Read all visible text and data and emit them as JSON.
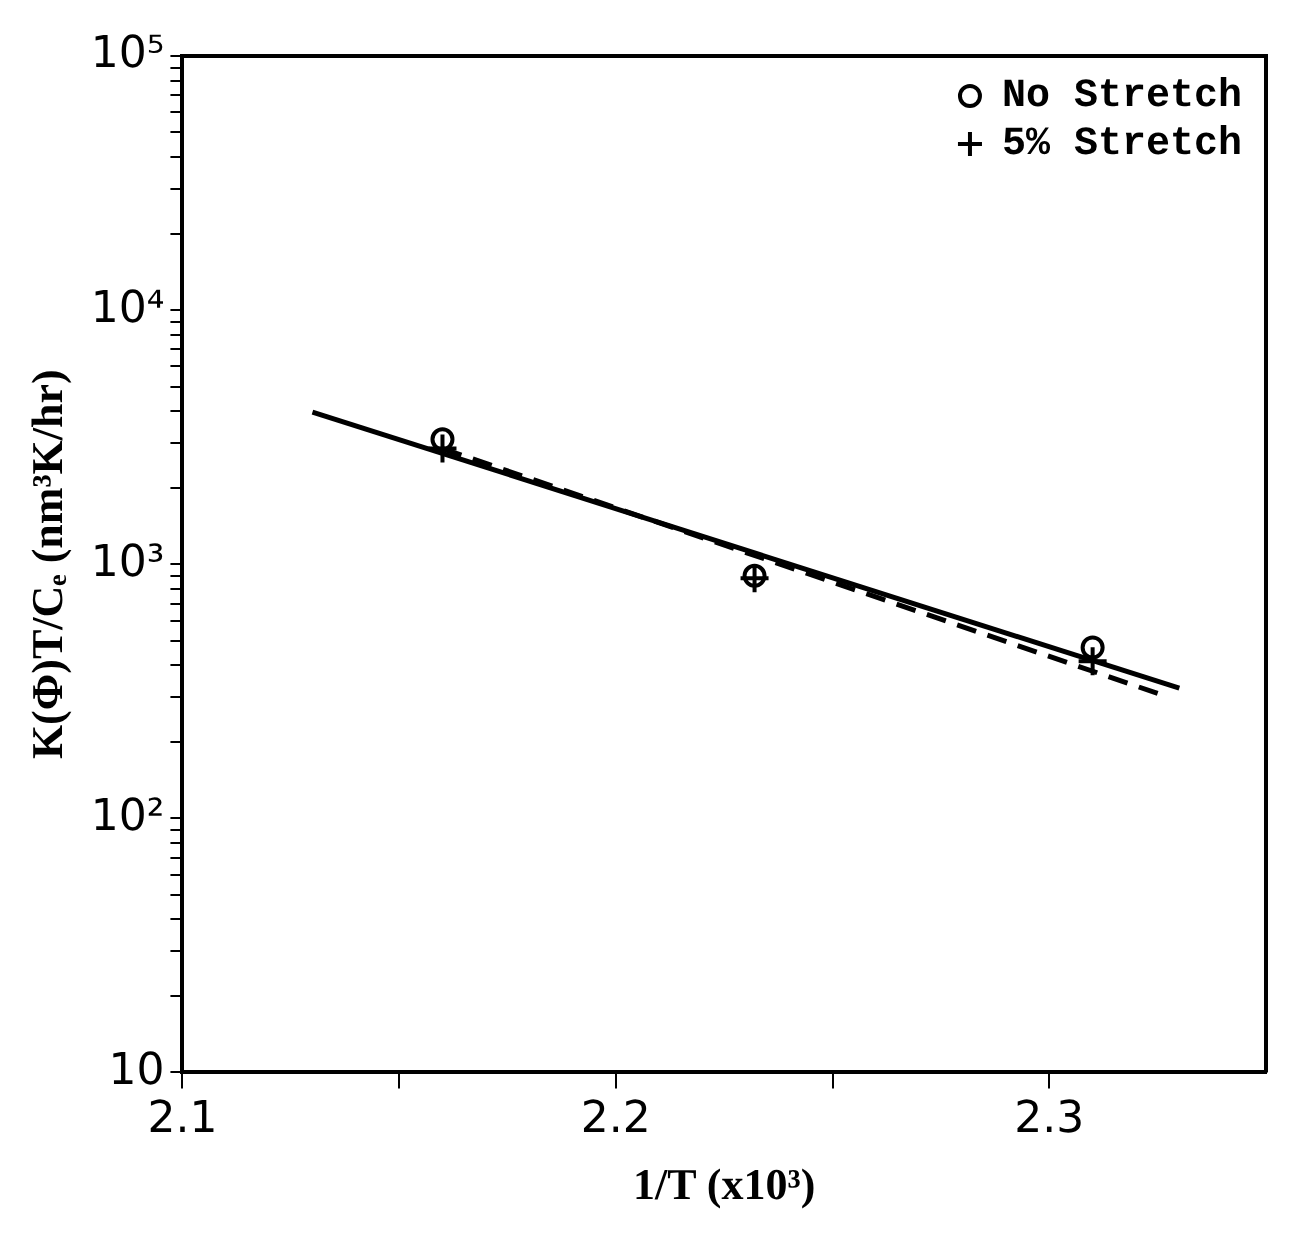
{
  "chart_data": {
    "type": "scatter",
    "xlabel": "1/T (x10³)",
    "ylabel": "K(Φ)T/Cₑ (nm³K/hr)",
    "log": "y",
    "grid": false,
    "legend": "top right",
    "xlim": [
      2.1,
      2.35
    ],
    "xticks": [
      2.1,
      {
        "value": 2.15,
        "label": null
      },
      2.2,
      {
        "value": 2.25,
        "label": null
      },
      2.3
    ],
    "ylim": [
      10,
      100000
    ],
    "yticks": [
      {
        "value": 10,
        "label": "10"
      },
      {
        "value": 20,
        "label": null
      },
      {
        "value": 30,
        "label": null
      },
      {
        "value": 40,
        "label": null
      },
      {
        "value": 50,
        "label": null
      },
      {
        "value": 60,
        "label": null
      },
      {
        "value": 70,
        "label": null
      },
      {
        "value": 80,
        "label": null
      },
      {
        "value": 90,
        "label": null
      },
      {
        "value": 100,
        "label": "10²"
      },
      {
        "value": 200,
        "label": null
      },
      {
        "value": 300,
        "label": null
      },
      {
        "value": 400,
        "label": null
      },
      {
        "value": 500,
        "label": null
      },
      {
        "value": 600,
        "label": null
      },
      {
        "value": 700,
        "label": null
      },
      {
        "value": 800,
        "label": null
      },
      {
        "value": 900,
        "label": null
      },
      {
        "value": 1000,
        "label": "10³"
      },
      {
        "value": 2000,
        "label": null
      },
      {
        "value": 3000,
        "label": null
      },
      {
        "value": 4000,
        "label": null
      },
      {
        "value": 5000,
        "label": null
      },
      {
        "value": 6000,
        "label": null
      },
      {
        "value": 7000,
        "label": null
      },
      {
        "value": 8000,
        "label": null
      },
      {
        "value": 9000,
        "label": null
      },
      {
        "value": 10000,
        "label": "10⁴"
      },
      {
        "value": 20000,
        "label": null
      },
      {
        "value": 30000,
        "label": null
      },
      {
        "value": 40000,
        "label": null
      },
      {
        "value": 50000,
        "label": null
      },
      {
        "value": 60000,
        "label": null
      },
      {
        "value": 70000,
        "label": null
      },
      {
        "value": 80000,
        "label": null
      },
      {
        "value": 90000,
        "label": null
      },
      {
        "value": 100000,
        "label": "10⁵"
      }
    ],
    "series": [
      {
        "name": "No Stretch",
        "type": "scatter",
        "marker": "circle",
        "color": "#000000",
        "x": [
          2.16,
          2.232,
          2.31
        ],
        "values": [
          3100,
          900,
          470
        ]
      },
      {
        "name": "5% Stretch",
        "type": "scatter",
        "marker": "cross",
        "color": "#000000",
        "x": [
          2.16,
          2.232,
          2.31
        ],
        "values": [
          2850,
          880,
          415
        ]
      },
      {
        "type": "line",
        "line_style": "solid",
        "marker": "none",
        "color": "#000000",
        "x": [
          2.13,
          2.33
        ],
        "values": [
          3970,
          325
        ]
      },
      {
        "type": "line",
        "line_style": "dashed",
        "marker": "none",
        "color": "#000000",
        "x": [
          2.16,
          2.325
        ],
        "values": [
          2850,
          310
        ]
      }
    ]
  }
}
